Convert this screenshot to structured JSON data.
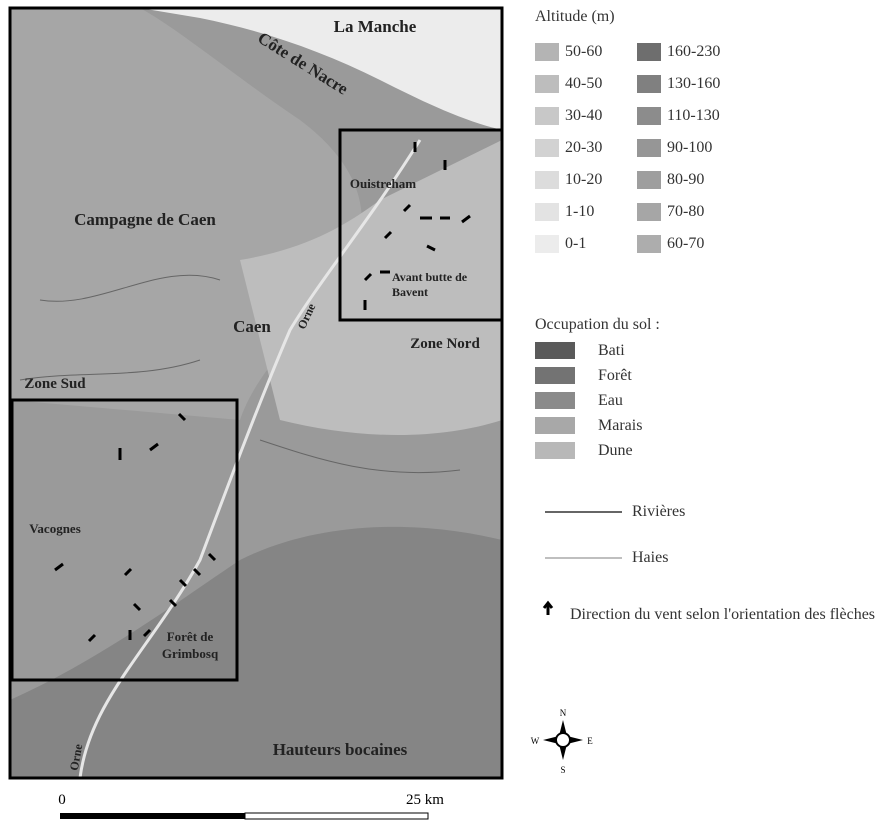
{
  "map": {
    "labels": {
      "sea": "La Manche",
      "coast": "Côte de Nacre",
      "plain": "Campagne de Caen",
      "city": "Caen",
      "river_north": "Orne",
      "river_south": "Orne",
      "port": "Ouistreham",
      "butte": "Avant butte de Bavent",
      "zone_north": "Zone Nord",
      "zone_south": "Zone Sud",
      "village": "Vacognes",
      "forest": "Forêt de Grimbosq",
      "hills": "Hauteurs bocaines"
    },
    "scale": {
      "start": "0",
      "end": "25 km"
    },
    "compass": {
      "n": "N",
      "s": "S",
      "w": "W",
      "e": "E"
    }
  },
  "legend": {
    "altitude_title": "Altitude (m)",
    "altitude_col1": [
      {
        "label": "50-60",
        "color": "#b4b4b4"
      },
      {
        "label": "40-50",
        "color": "#bdbdbd"
      },
      {
        "label": "30-40",
        "color": "#c8c8c8"
      },
      {
        "label": "20-30",
        "color": "#d2d2d2"
      },
      {
        "label": "10-20",
        "color": "#dcdcdc"
      },
      {
        "label": "1-10",
        "color": "#e3e3e3"
      },
      {
        "label": "0-1",
        "color": "#ececec"
      }
    ],
    "altitude_col2": [
      {
        "label": "160-230",
        "color": "#6e6e6e"
      },
      {
        "label": "130-160",
        "color": "#808080"
      },
      {
        "label": "110-130",
        "color": "#8c8c8c"
      },
      {
        "label": "90-100",
        "color": "#969696"
      },
      {
        "label": "80-90",
        "color": "#9e9e9e"
      },
      {
        "label": "70-80",
        "color": "#a6a6a6"
      },
      {
        "label": "60-70",
        "color": "#adadad"
      }
    ],
    "landuse_title": "Occupation du sol :",
    "landuse": [
      {
        "label": "Bati",
        "color": "#5a5a5a"
      },
      {
        "label": "Forêt",
        "color": "#737373"
      },
      {
        "label": "Eau",
        "color": "#8a8a8a"
      },
      {
        "label": "Marais",
        "color": "#a8a8a8"
      },
      {
        "label": "Dune",
        "color": "#b8b8b8"
      }
    ],
    "rivers": "Rivières",
    "hedges": "Haies",
    "wind": "Direction du vent selon l'orientation des flèches"
  }
}
